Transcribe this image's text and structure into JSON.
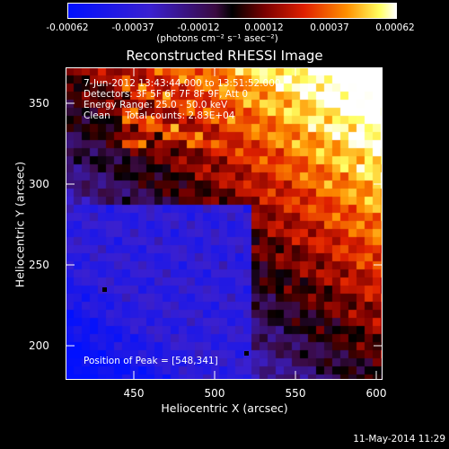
{
  "colorbar": {
    "ticks": [
      "-0.00062",
      "-0.00037",
      "-0.00012",
      "0.00012",
      "0.00037",
      "0.00062"
    ],
    "units": "(photons cm⁻² s⁻¹ asec⁻²)"
  },
  "plot": {
    "title": "Reconstructed RHESSI Image",
    "info_lines": [
      " 7-Jun-2012 13:43:44.000 to 13:51:52.000",
      "Detectors: 3F 5F 6F 7F 8F 9F, Att 0",
      "Energy Range: 25.0 - 50.0 keV",
      "Clean     Total counts: 2.83E+04"
    ],
    "peak_label": "Position of Peak = [548,341]",
    "x_ticks": [
      "450",
      "500",
      "550",
      "600"
    ],
    "y_ticks": [
      "350",
      "300",
      "250",
      "200"
    ],
    "xlabel": "Heliocentric X (arcsec)",
    "ylabel": "Heliocentric Y (arcsec)"
  },
  "footer": "11-May-2014 11:29"
}
